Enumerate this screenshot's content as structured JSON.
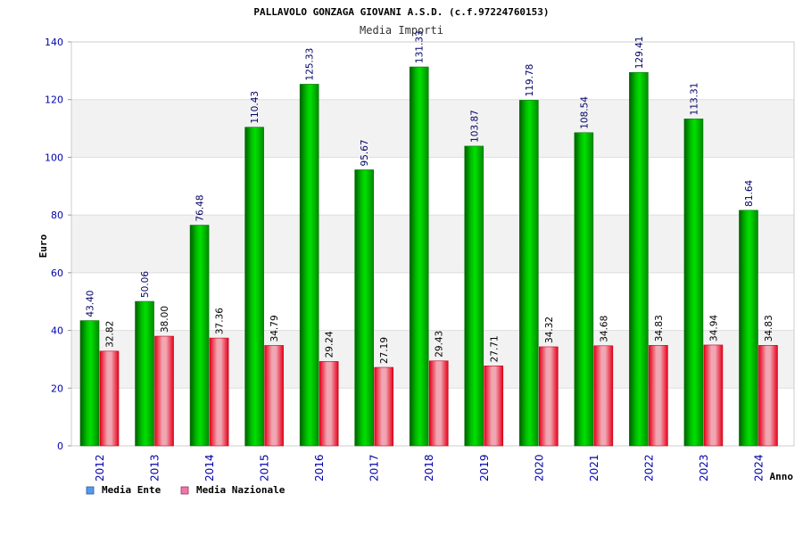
{
  "header": {
    "title": "PALLAVOLO GONZAGA GIOVANI A.S.D. (c.f.97224760153)",
    "subtitle": "Media Importi"
  },
  "colors": {
    "series_ente": "#00aa00",
    "series_nazionale": "#ee0022",
    "legend_ente_swatch": "#5599ee",
    "legend_nazionale_swatch": "#ee77aa",
    "axis_text": "#0000aa",
    "grid_band": "#f2f2f2"
  },
  "chart_data": {
    "type": "bar",
    "title": "PALLAVOLO GONZAGA GIOVANI A.S.D. (c.f.97224760153)",
    "subtitle": "Media Importi",
    "xlabel": "Anno",
    "ylabel": "Euro",
    "ylim": [
      0,
      140
    ],
    "yticks": [
      0,
      20,
      40,
      60,
      80,
      100,
      120,
      140
    ],
    "grid": true,
    "legend_position": "bottom-left",
    "categories": [
      "2012",
      "2013",
      "2014",
      "2015",
      "2016",
      "2017",
      "2018",
      "2019",
      "2020",
      "2021",
      "2022",
      "2023",
      "2024"
    ],
    "series": [
      {
        "name": "Media Ente",
        "values": [
          43.4,
          50.06,
          76.48,
          110.43,
          125.33,
          95.67,
          131.33,
          103.87,
          119.78,
          108.54,
          129.41,
          113.31,
          81.64
        ],
        "labels": [
          "43.40",
          "50.06",
          "76.48",
          "110.43",
          "125.33",
          "95.67",
          "131.33",
          "103.87",
          "119.78",
          "108.54",
          "129.41",
          "113.31",
          "81.64"
        ]
      },
      {
        "name": "Media Nazionale",
        "values": [
          32.82,
          38.0,
          37.36,
          34.79,
          29.24,
          27.19,
          29.43,
          27.71,
          34.32,
          34.68,
          34.83,
          34.94,
          34.83
        ],
        "labels": [
          "32.82",
          "38.00",
          "37.36",
          "34.79",
          "29.24",
          "27.19",
          "29.43",
          "27.71",
          "34.32",
          "34.68",
          "34.83",
          "34.94",
          "34.83"
        ]
      }
    ]
  }
}
